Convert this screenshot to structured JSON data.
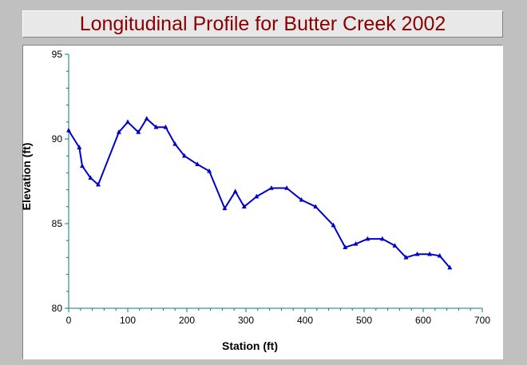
{
  "chart_data": {
    "type": "line",
    "title": "Longitudinal Profile for Butter Creek 2002",
    "xlabel": "Station (ft)",
    "ylabel": "Elevation (ft)",
    "xlim": [
      0,
      700
    ],
    "ylim": [
      80,
      95
    ],
    "x_ticks": [
      0,
      100,
      200,
      300,
      400,
      500,
      600,
      700
    ],
    "y_ticks": [
      80,
      85,
      90,
      95
    ],
    "grid": false,
    "legend": "none",
    "series": [
      {
        "color": "#0000cc",
        "marker": "triangle",
        "x": [
          0,
          18,
          23,
          37,
          50,
          85,
          100,
          118,
          132,
          148,
          164,
          180,
          196,
          218,
          238,
          264,
          282,
          297,
          318,
          343,
          369,
          394,
          418,
          448,
          468,
          486,
          506,
          531,
          552,
          571,
          590,
          611,
          628,
          645
        ],
        "y": [
          90.5,
          89.5,
          88.4,
          87.7,
          87.3,
          90.4,
          91.0,
          90.4,
          91.2,
          90.7,
          90.7,
          89.7,
          89.0,
          88.5,
          88.1,
          85.9,
          86.9,
          86.0,
          86.6,
          87.1,
          87.1,
          86.4,
          86.0,
          84.9,
          83.6,
          83.8,
          84.1,
          84.1,
          83.7,
          83.0,
          83.2,
          83.2,
          83.1,
          82.4
        ]
      }
    ]
  }
}
